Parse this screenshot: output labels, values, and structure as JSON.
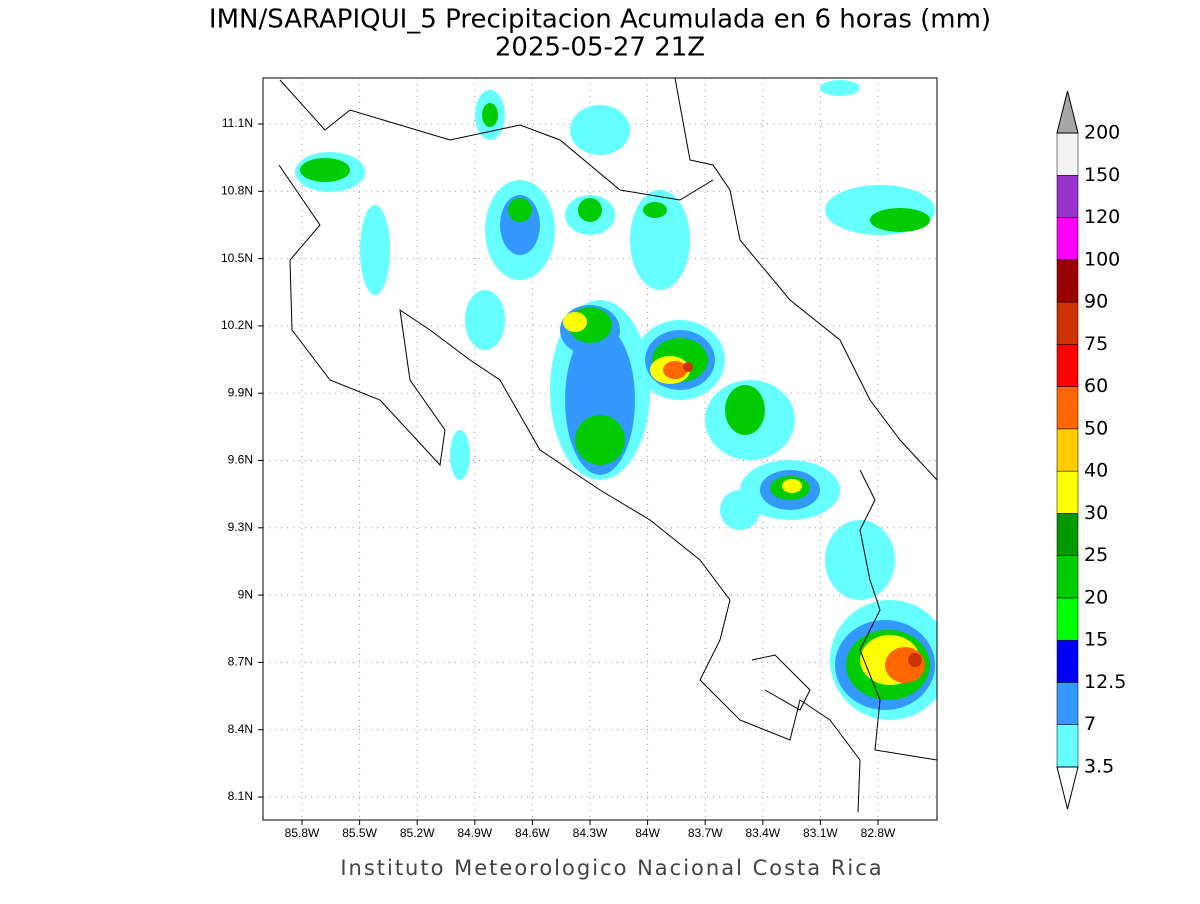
{
  "title": "IMN/SARAPIQUI_5 Precipitacion Acumulada en 6 horas (mm)",
  "subtitle": "2025-05-27 21Z",
  "lon_labels": [
    "85.8W",
    "85.5W",
    "85.2W",
    "84.9W",
    "84.6W",
    "84.3W",
    "84W",
    "83.7W",
    "83.4W",
    "83.1W",
    "82.8W"
  ],
  "lat_labels": [
    "11.1N",
    "10.8N",
    "10.5N",
    "10.2N",
    "9.9N",
    "9.6N",
    "9.3N",
    "9N",
    "8.7N",
    "8.4N",
    "8.1N"
  ],
  "colorbar": {
    "levels": [
      3.5,
      7,
      12.5,
      15,
      20,
      25,
      30,
      40,
      50,
      60,
      75,
      90,
      100,
      120,
      150,
      200
    ],
    "colors": [
      "#66ffff",
      "#3399ff",
      "#0000ff",
      "#00ff00",
      "#00cc00",
      "#009900",
      "#ffff00",
      "#ffcc00",
      "#ff6600",
      "#ff0000",
      "#cc3300",
      "#990000",
      "#ff00ff",
      "#9933cc",
      "#f2f2f2"
    ],
    "over_color": "#a6a6a6",
    "under_color": "#ffffff"
  },
  "footer": "Instituto Meteorologico Nacional Costa Rica"
}
